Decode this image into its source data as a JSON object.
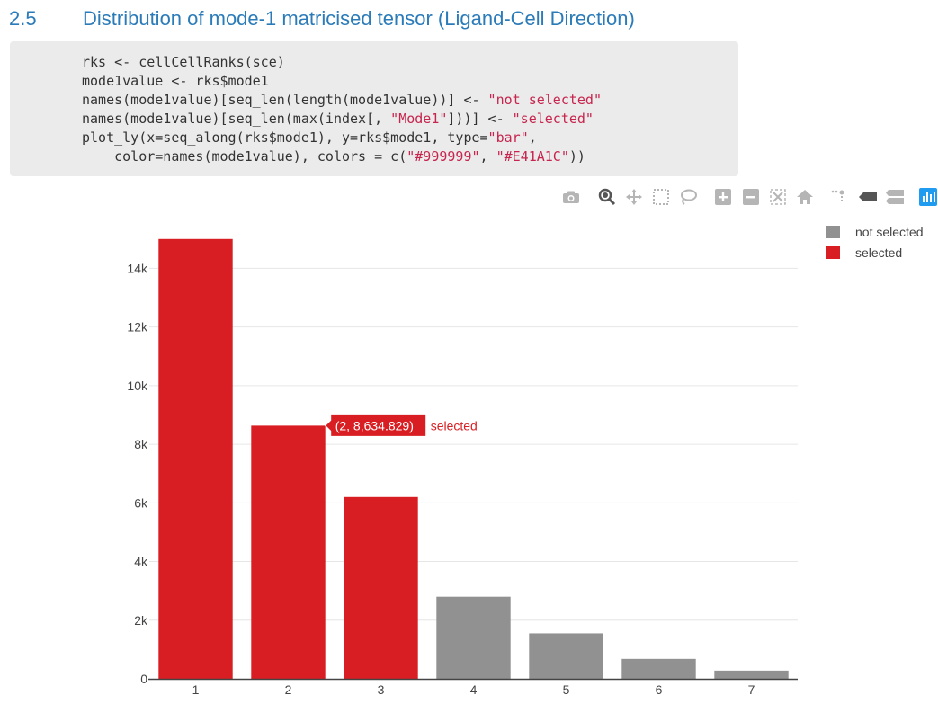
{
  "section": {
    "number": "2.5",
    "title": "Distribution of mode-1 matricised tensor (Ligand-Cell Direction)"
  },
  "code": {
    "lines": [
      [
        {
          "t": "rks <- cellCellRanks(sce)"
        }
      ],
      [
        {
          "t": "mode1value <- rks$mode1"
        }
      ],
      [
        {
          "t": "names(mode1value)[seq_len(length(mode1value))] <- "
        },
        {
          "t": "\"not selected\"",
          "s": true
        }
      ],
      [
        {
          "t": "names(mode1value)[seq_len(max(index[, "
        },
        {
          "t": "\"Mode1\"",
          "s": true
        },
        {
          "t": "]))] <- "
        },
        {
          "t": "\"selected\"",
          "s": true
        }
      ],
      [
        {
          "t": "plot_ly(x=seq_along(rks$mode1), y=rks$mode1, type="
        },
        {
          "t": "\"bar\"",
          "s": true
        },
        {
          "t": ","
        }
      ],
      [
        {
          "t": "    color=names(mode1value), colors = c("
        },
        {
          "t": "\"#999999\"",
          "s": true
        },
        {
          "t": ", "
        },
        {
          "t": "\"#E41A1C\"",
          "s": true
        },
        {
          "t": "))"
        }
      ]
    ]
  },
  "modebar": {
    "icons": [
      "camera-icon",
      "zoom-icon",
      "pan-icon",
      "box-select-icon",
      "lasso-icon",
      "zoom-in-icon",
      "zoom-out-icon",
      "autoscale-icon",
      "reset-axes-icon",
      "spike-lines-icon",
      "hover-closest-icon",
      "hover-compare-icon",
      "plotly-logo-icon"
    ]
  },
  "colors": {
    "selected": "#d81e22",
    "not_selected": "#919191",
    "heading": "#2b7bb9",
    "code_string": "#c7254e",
    "modebar_active": "#1f9cf0"
  },
  "chart_data": {
    "type": "bar",
    "x": [
      1,
      2,
      3,
      4,
      5,
      6,
      7
    ],
    "values": [
      15000,
      8634.829,
      6200,
      2800,
      1550,
      680,
      280
    ],
    "groups": [
      "selected",
      "selected",
      "selected",
      "not selected",
      "not selected",
      "not selected",
      "not selected"
    ],
    "series": [
      {
        "name": "not selected",
        "color": "#919191"
      },
      {
        "name": "selected",
        "color": "#d81e22"
      }
    ],
    "ylim": [
      0,
      15300
    ],
    "yticks": [
      0,
      2000,
      4000,
      6000,
      8000,
      10000,
      12000,
      14000
    ],
    "ytick_labels": [
      "0",
      "2k",
      "4k",
      "6k",
      "8k",
      "10k",
      "12k",
      "14k"
    ],
    "xtick_labels": [
      "1",
      "2",
      "3",
      "4",
      "5",
      "6",
      "7"
    ],
    "grid": true,
    "legend_position": "top-right",
    "hover": {
      "point_index": 1,
      "value_text": "(2, 8,634.829)",
      "series_text": "selected"
    }
  }
}
